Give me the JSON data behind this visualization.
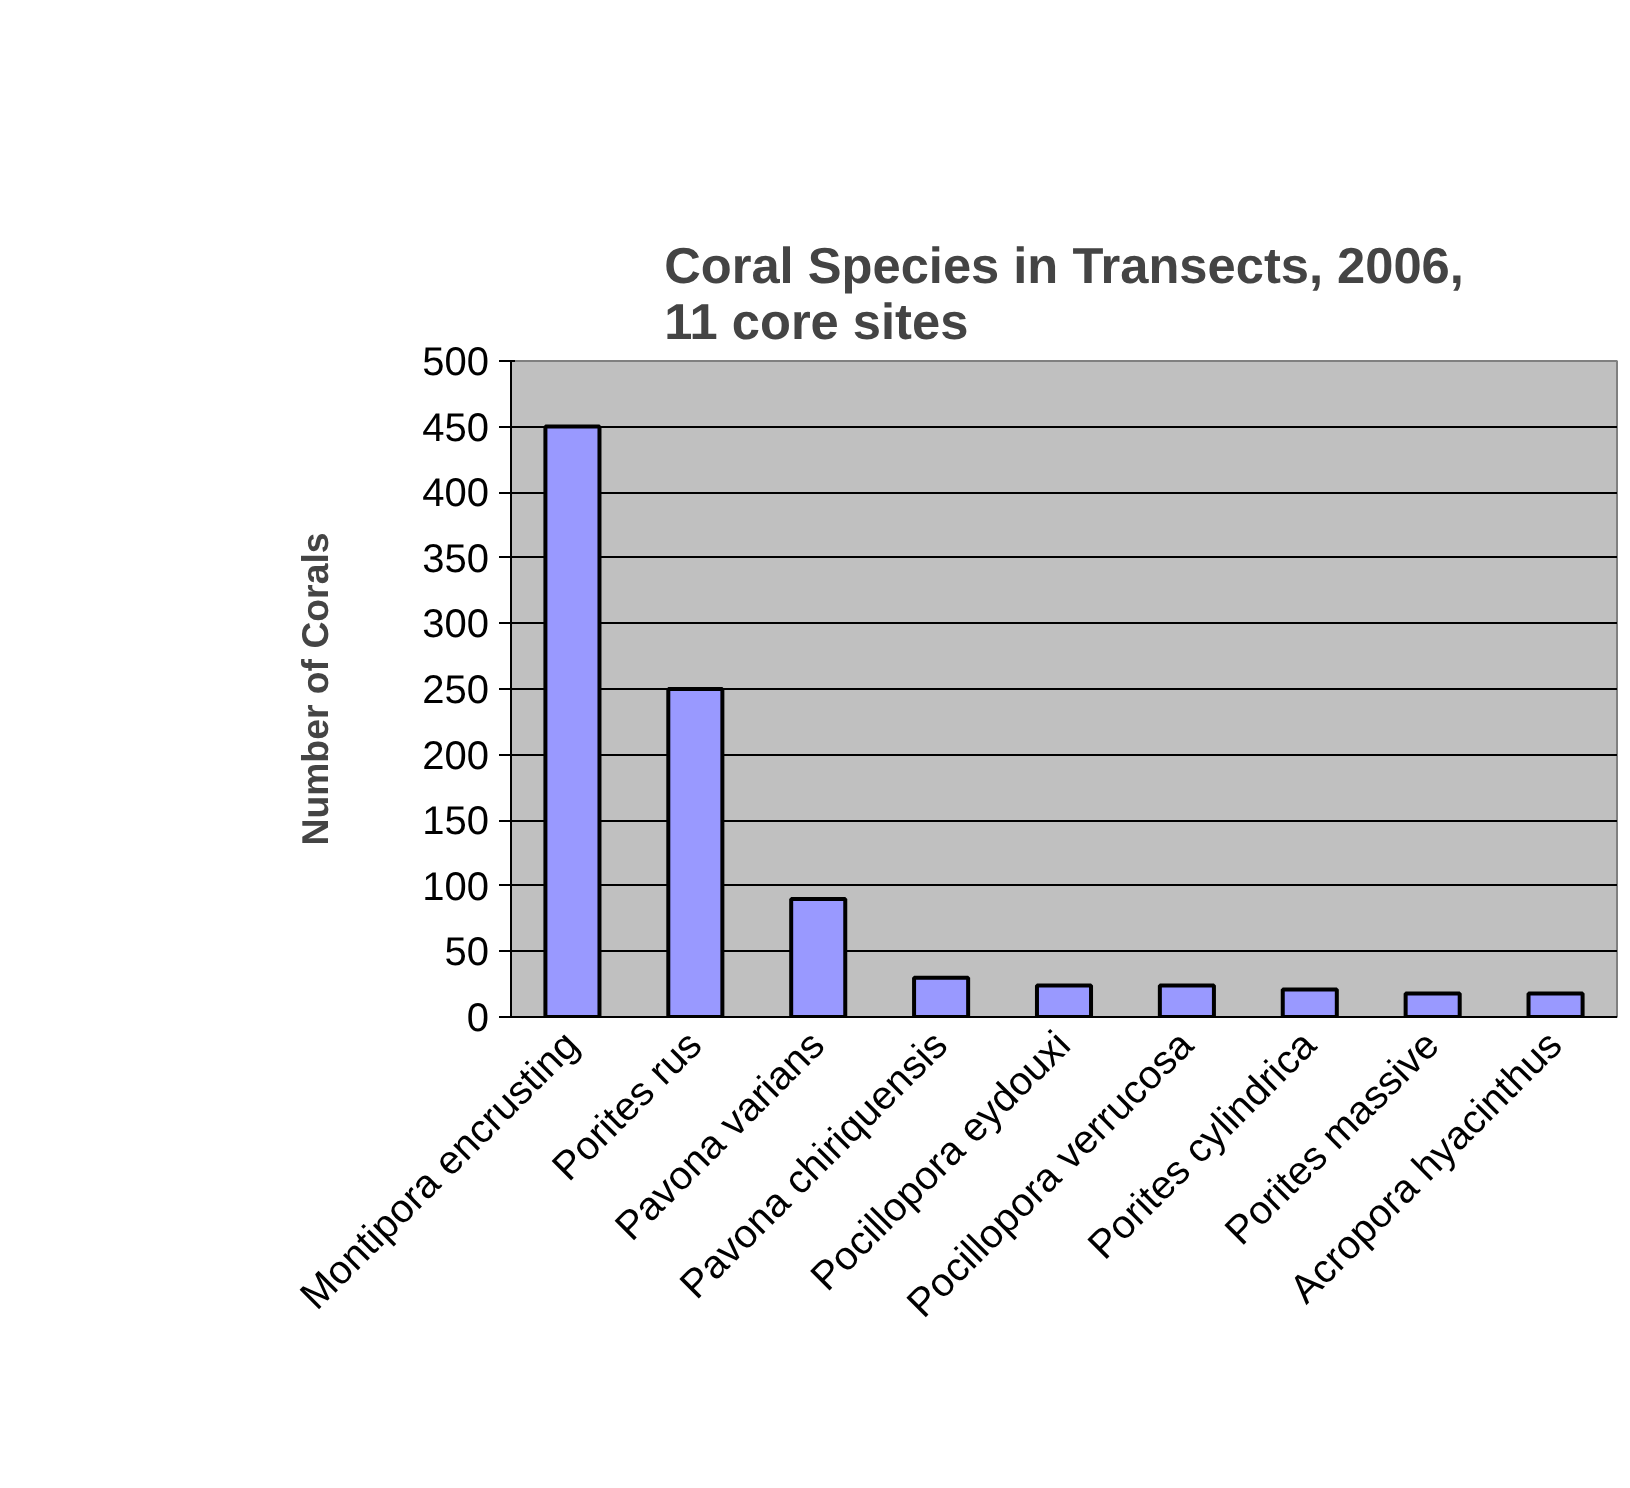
{
  "chart_data": {
    "type": "bar",
    "title": "Coral Species in Transects, 2006,\n11 core sites",
    "ylabel": "Number of Corals",
    "categories": [
      "Montipora encrusting",
      "Porites rus",
      "Pavona varians",
      "Pavona chiriquensis",
      "Pocillopora eydouxi",
      "Pocillopora verrucosa",
      "Porites cylindrica",
      "Porites massive",
      "Acropora hyacinthus"
    ],
    "values": [
      450,
      250,
      90,
      30,
      24,
      24,
      21,
      18,
      18
    ],
    "color": "#9999ff",
    "ylim": [
      0,
      500
    ],
    "yticks": [
      0,
      50,
      100,
      150,
      200,
      250,
      300,
      350,
      400,
      450,
      500
    ],
    "grid": "y"
  }
}
